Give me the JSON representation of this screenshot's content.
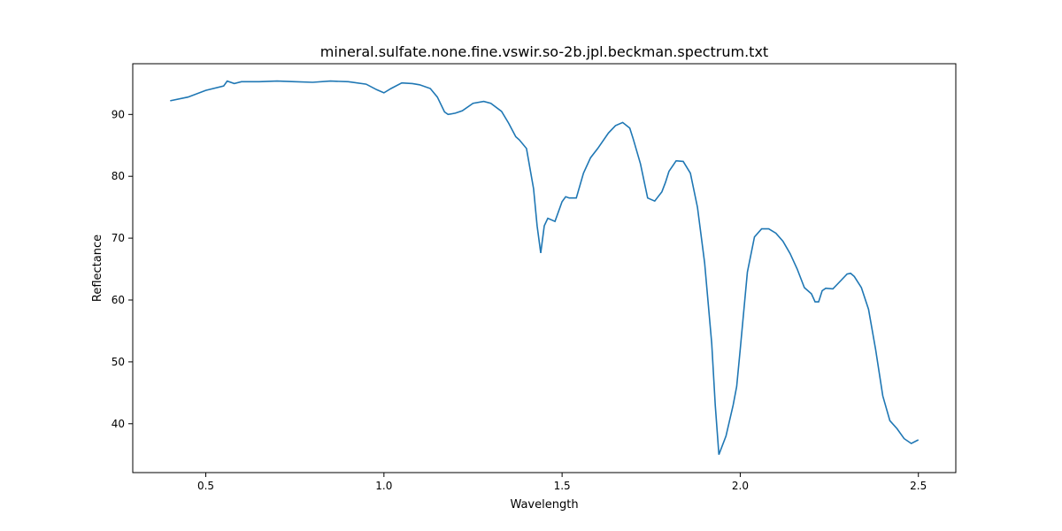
{
  "chart_data": {
    "type": "line",
    "title": "mineral.sulfate.none.fine.vswir.so-2b.jpl.beckman.spectrum.txt",
    "xlabel": "Wavelength",
    "ylabel": "Reflectance",
    "xlim": [
      0.295,
      2.605
    ],
    "ylim": [
      32.1,
      98.2
    ],
    "grid": false,
    "line_color": "#1f77b4",
    "x_ticks": [
      0.5,
      1.0,
      1.5,
      2.0,
      2.5
    ],
    "x_tick_labels": [
      "0.5",
      "1.0",
      "1.5",
      "2.0",
      "2.5"
    ],
    "y_ticks": [
      40,
      50,
      60,
      70,
      80,
      90
    ],
    "y_tick_labels": [
      "40",
      "50",
      "60",
      "70",
      "80",
      "90"
    ],
    "series": [
      {
        "x": [
          0.4,
          0.45,
          0.5,
          0.55,
          0.56,
          0.58,
          0.6,
          0.65,
          0.7,
          0.75,
          0.8,
          0.85,
          0.9,
          0.95,
          0.98,
          1.0,
          1.02,
          1.05,
          1.08,
          1.1,
          1.13,
          1.15,
          1.17,
          1.18,
          1.2,
          1.22,
          1.25,
          1.28,
          1.3,
          1.33,
          1.35,
          1.37,
          1.38,
          1.4,
          1.42,
          1.43,
          1.44,
          1.45,
          1.46,
          1.48,
          1.5,
          1.51,
          1.52,
          1.54,
          1.56,
          1.58,
          1.6,
          1.63,
          1.65,
          1.67,
          1.69,
          1.7,
          1.72,
          1.74,
          1.76,
          1.78,
          1.79,
          1.8,
          1.82,
          1.84,
          1.86,
          1.88,
          1.9,
          1.92,
          1.93,
          1.94,
          1.96,
          1.98,
          1.99,
          2.0,
          2.02,
          2.04,
          2.06,
          2.08,
          2.1,
          2.12,
          2.14,
          2.16,
          2.18,
          2.2,
          2.21,
          2.22,
          2.23,
          2.24,
          2.26,
          2.28,
          2.3,
          2.31,
          2.32,
          2.34,
          2.36,
          2.38,
          2.4,
          2.42,
          2.44,
          2.46,
          2.48,
          2.5
        ],
        "y": [
          92.2,
          92.8,
          93.9,
          94.6,
          95.4,
          95.0,
          95.3,
          95.3,
          95.4,
          95.3,
          95.2,
          95.4,
          95.3,
          94.9,
          94.0,
          93.5,
          94.2,
          95.1,
          95.0,
          94.8,
          94.2,
          92.8,
          90.4,
          90.0,
          90.2,
          90.6,
          91.8,
          92.1,
          91.8,
          90.5,
          88.6,
          86.4,
          85.9,
          84.5,
          78.0,
          72.0,
          67.6,
          72.0,
          73.2,
          72.7,
          75.9,
          76.7,
          76.5,
          76.5,
          80.5,
          83.0,
          84.5,
          87.0,
          88.2,
          88.7,
          87.8,
          86.0,
          82.0,
          76.5,
          76.0,
          77.5,
          79.0,
          80.8,
          82.5,
          82.4,
          80.5,
          75.0,
          66.0,
          53.0,
          43.0,
          35.0,
          38.0,
          43.0,
          46.0,
          52.0,
          64.5,
          70.2,
          71.5,
          71.5,
          70.8,
          69.5,
          67.5,
          65.0,
          62.0,
          61.0,
          59.7,
          59.7,
          61.5,
          61.9,
          61.8,
          63.0,
          64.2,
          64.3,
          63.8,
          62.0,
          58.5,
          52.0,
          44.5,
          40.5,
          39.2,
          37.6,
          36.8,
          37.4
        ]
      }
    ]
  }
}
